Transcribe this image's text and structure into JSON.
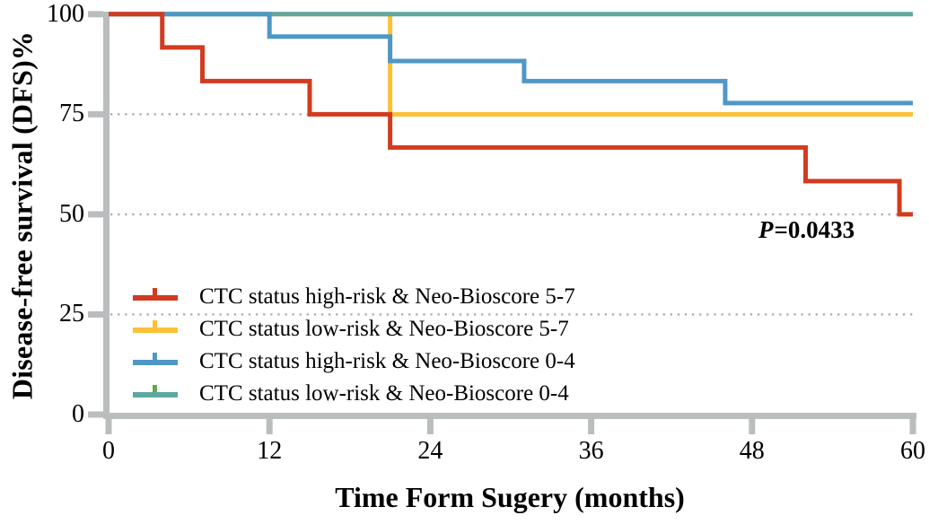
{
  "chart_data": {
    "type": "line",
    "subtype": "kaplan-meier-step",
    "title": "",
    "xlabel": "Time Form Sugery (months)",
    "ylabel": "Disease-free survival (DFS)%",
    "xlim": [
      0,
      60
    ],
    "ylim": [
      0,
      100
    ],
    "xticks": [
      0,
      12,
      24,
      36,
      48,
      60
    ],
    "xtick_labels": [
      "0",
      "12",
      "24",
      "36",
      "48",
      "60"
    ],
    "yticks": [
      100,
      75,
      50,
      25,
      0
    ],
    "ytick_labels": [
      "100",
      "75",
      "50",
      "25",
      "0"
    ],
    "grid_y": [
      75,
      50,
      25
    ],
    "grid_style": "dotted horizontal lines",
    "legend_position": "inside lower-left",
    "annotation": {
      "p_label": "P",
      "p_value": "=0.0433"
    },
    "style": {
      "axis_color": "#babdbd",
      "grid_color": "#aeaeae",
      "line_width": 5
    },
    "series": [
      {
        "id": "ctc-high-risk-neo-bioscore-5-7",
        "name": "CTC status high-risk & Neo-Bioscore 5-7",
        "color": "#d23b1f",
        "z": 4,
        "points": [
          [
            0,
            100
          ],
          [
            4,
            91.7
          ],
          [
            7,
            83.3
          ],
          [
            15,
            75
          ],
          [
            21,
            66.7
          ],
          [
            52,
            58.3
          ],
          [
            59,
            50
          ],
          [
            60,
            50
          ]
        ]
      },
      {
        "id": "ctc-low-risk-neo-bioscore-5-7",
        "name": "CTC status low-risk & Neo-Bioscore 5-7",
        "color": "#fcc135",
        "z": 1,
        "points": [
          [
            0,
            100
          ],
          [
            21,
            75
          ],
          [
            60,
            75
          ]
        ]
      },
      {
        "id": "ctc-high-risk-neo-bioscore-0-4",
        "name": "CTC status high-risk & Neo-Bioscore 0-4",
        "color": "#4f97c7",
        "z": 3,
        "points": [
          [
            0,
            100
          ],
          [
            12,
            94.4
          ],
          [
            21,
            88.3
          ],
          [
            31,
            83.3
          ],
          [
            46,
            77.8
          ],
          [
            60,
            77.8
          ]
        ]
      },
      {
        "id": "ctc-low-risk-neo-bioscore-0-4",
        "name": "CTC status low-risk & Neo-Bioscore 0-4",
        "color": "#5fa8a1",
        "z": 2,
        "points": [
          [
            0,
            100
          ],
          [
            60,
            100
          ]
        ]
      }
    ]
  },
  "legend": {
    "items": [
      {
        "label": "CTC status high-risk & Neo-Bioscore 5-7",
        "color": "#d23b1f",
        "tick_color": "#d23b1f"
      },
      {
        "label": "CTC status low-risk & Neo-Bioscore 5-7",
        "color": "#fcc135",
        "tick_color": "#fcc135"
      },
      {
        "label": "CTC status high-risk & Neo-Bioscore 0-4",
        "color": "#4f97c7",
        "tick_color": "#4f97c7"
      },
      {
        "label": "CTC status low-risk & Neo-Bioscore 0-4",
        "color": "#5fa8a1",
        "tick_color": "#62a84f"
      }
    ]
  }
}
